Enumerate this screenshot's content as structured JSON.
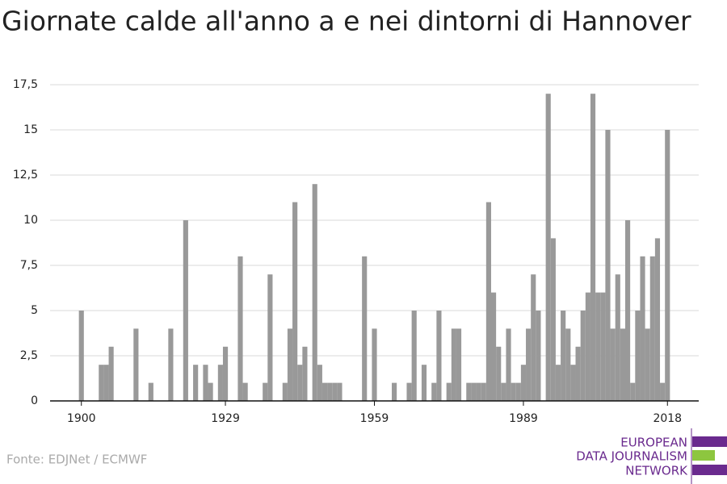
{
  "chart_data": {
    "type": "bar",
    "title": "Giornate calde all'anno a e nei dintorni di Hannover",
    "source": "Fonte: EDJNet / ECMWF",
    "logo": [
      "EUROPEAN",
      "DATA JOURNALISM",
      "NETWORK"
    ],
    "color": "#999999",
    "grid": true,
    "x": [
      1900,
      1901,
      1902,
      1903,
      1904,
      1905,
      1906,
      1907,
      1908,
      1909,
      1910,
      1911,
      1912,
      1913,
      1914,
      1915,
      1916,
      1917,
      1918,
      1919,
      1920,
      1921,
      1922,
      1923,
      1924,
      1925,
      1926,
      1927,
      1928,
      1929,
      1930,
      1931,
      1932,
      1933,
      1934,
      1935,
      1936,
      1937,
      1938,
      1939,
      1940,
      1941,
      1942,
      1943,
      1944,
      1945,
      1946,
      1947,
      1948,
      1949,
      1950,
      1951,
      1952,
      1953,
      1954,
      1955,
      1956,
      1957,
      1958,
      1959,
      1960,
      1961,
      1962,
      1963,
      1964,
      1965,
      1966,
      1967,
      1968,
      1969,
      1970,
      1971,
      1972,
      1973,
      1974,
      1975,
      1976,
      1977,
      1978,
      1979,
      1980,
      1981,
      1982,
      1983,
      1984,
      1985,
      1986,
      1987,
      1988,
      1989,
      1990,
      1991,
      1992,
      1993,
      1994,
      1995,
      1996,
      1997,
      1998,
      1999,
      2000,
      2001,
      2002,
      2003,
      2004,
      2005,
      2006,
      2007,
      2008,
      2009,
      2010,
      2011,
      2012,
      2013,
      2014,
      2015,
      2016,
      2017,
      2018
    ],
    "values": [
      5,
      0,
      0,
      0,
      2,
      2,
      3,
      0,
      0,
      0,
      0,
      4,
      0,
      0,
      1,
      0,
      0,
      0,
      4,
      0,
      0,
      10,
      0,
      2,
      0,
      2,
      1,
      0,
      2,
      3,
      0,
      0,
      8,
      1,
      0,
      0,
      0,
      1,
      7,
      0,
      0,
      1,
      4,
      11,
      2,
      3,
      0,
      12,
      2,
      1,
      1,
      1,
      1,
      0,
      0,
      0,
      0,
      8,
      0,
      4,
      0,
      0,
      0,
      1,
      0,
      0,
      1,
      5,
      0,
      2,
      0,
      1,
      5,
      0,
      1,
      4,
      4,
      0,
      1,
      1,
      1,
      1,
      11,
      6,
      3,
      1,
      4,
      1,
      1,
      2,
      4,
      7,
      5,
      0,
      17,
      9,
      2,
      5,
      4,
      2,
      3,
      5,
      6,
      17,
      6,
      6,
      15,
      4,
      7,
      4,
      10,
      1,
      5,
      8,
      4,
      8,
      9,
      1,
      15
    ],
    "xlim": [
      1893.7,
      2024.3
    ],
    "xticks": [
      1900,
      1929,
      1959,
      1989,
      2018
    ],
    "ylim": [
      0,
      17.5
    ],
    "yticks": [
      0,
      {
        "value": 2.5,
        "label": "2,5"
      },
      5,
      {
        "value": 7.5,
        "label": "7,5"
      },
      10,
      {
        "value": 12.5,
        "label": "12,5"
      },
      15,
      {
        "value": 17.5,
        "label": "17,5"
      }
    ]
  }
}
